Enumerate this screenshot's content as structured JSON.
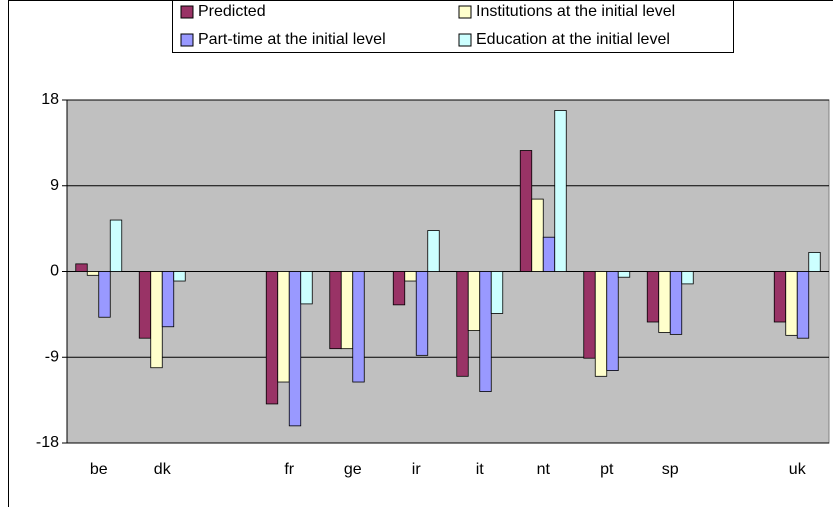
{
  "chart_data": {
    "type": "bar",
    "categories": [
      "be",
      "dk",
      null,
      "fr",
      "ge",
      "ir",
      "it",
      "nt",
      "pt",
      "sp",
      null,
      "uk"
    ],
    "series": [
      {
        "name": "Predicted",
        "color": "#993366",
        "values": [
          0.8,
          -7,
          null,
          -13.9,
          -8.1,
          -3.5,
          -11,
          12.7,
          -9.1,
          -5.3,
          null,
          -5.3
        ]
      },
      {
        "name": "Institutions at the initial level",
        "color": "#ffffcc",
        "values": [
          -0.4,
          -10.1,
          null,
          -11.6,
          -8.1,
          -1,
          -6.2,
          7.6,
          -11,
          -6.4,
          null,
          -6.7
        ]
      },
      {
        "name": "Part-time at the initial level",
        "color": "#9999ff",
        "values": [
          -4.8,
          -5.8,
          null,
          -16.2,
          -11.6,
          -8.8,
          -12.6,
          3.6,
          -10.4,
          -6.6,
          null,
          -7
        ]
      },
      {
        "name": "Education at the initial level",
        "color": "#ccffff",
        "values": [
          5.4,
          -1,
          null,
          -3.4,
          0,
          4.3,
          -4.4,
          16.9,
          -0.6,
          -1.3,
          null,
          2
        ]
      }
    ],
    "ylim": [
      -18,
      18
    ],
    "yticks": [
      -18,
      -9,
      0,
      9,
      18
    ],
    "grid": true,
    "legend": "top"
  }
}
